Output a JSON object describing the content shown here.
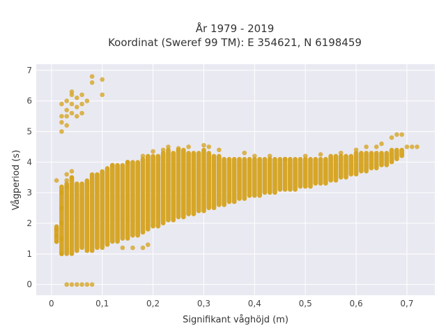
{
  "chart_data": {
    "type": "scatter",
    "title_line1": "År 1979 - 2019",
    "title_line2": "Koordinat (Sweref 99 TM): E 354621, N 6198459",
    "xlabel": "Signifikant våghöjd (m)",
    "ylabel": "Vågperiod (s)",
    "xlim": [
      -0.03,
      0.755
    ],
    "ylim": [
      -0.35,
      7.2
    ],
    "xticks": [
      0,
      0.1,
      0.2,
      0.3,
      0.4,
      0.5,
      0.6,
      0.7
    ],
    "xtick_labels": [
      "0",
      "0,1",
      "0,2",
      "0,3",
      "0,4",
      "0,5",
      "0,6",
      "0,7"
    ],
    "yticks": [
      0,
      1,
      2,
      3,
      4,
      5,
      6,
      7
    ],
    "ytick_labels": [
      "0",
      "1",
      "2",
      "3",
      "4",
      "5",
      "6",
      "7"
    ],
    "grid": true,
    "colors": {
      "marker": "#D4A017",
      "plot_background": "#E9E9F2",
      "grid": "#FFFFFF"
    },
    "series": [
      {
        "points": [
          [
            0.01,
            1.4
          ],
          [
            0.01,
            1.6
          ],
          [
            0.01,
            1.8
          ],
          [
            0.01,
            3.4
          ],
          [
            0.02,
            1.0
          ],
          [
            0.02,
            1.5
          ],
          [
            0.02,
            2.0
          ],
          [
            0.02,
            2.5
          ],
          [
            0.02,
            3.0
          ],
          [
            0.02,
            5.0
          ],
          [
            0.02,
            5.3
          ],
          [
            0.02,
            5.5
          ],
          [
            0.02,
            5.9
          ],
          [
            0.03,
            5.2
          ],
          [
            0.03,
            5.5
          ],
          [
            0.03,
            5.7
          ],
          [
            0.03,
            6.0
          ],
          [
            0.04,
            5.6
          ],
          [
            0.04,
            5.9
          ],
          [
            0.04,
            6.2
          ],
          [
            0.04,
            6.3
          ],
          [
            0.05,
            5.5
          ],
          [
            0.05,
            5.8
          ],
          [
            0.05,
            6.1
          ],
          [
            0.06,
            5.6
          ],
          [
            0.06,
            5.9
          ],
          [
            0.06,
            6.2
          ],
          [
            0.07,
            6.0
          ],
          [
            0.08,
            6.8
          ],
          [
            0.08,
            6.6
          ],
          [
            0.1,
            6.7
          ],
          [
            0.1,
            6.2
          ],
          [
            0.03,
            3.2
          ],
          [
            0.03,
            3.4
          ],
          [
            0.03,
            3.6
          ],
          [
            0.04,
            3.5
          ],
          [
            0.04,
            3.7
          ],
          [
            0.03,
            0
          ],
          [
            0.04,
            0
          ],
          [
            0.05,
            0
          ],
          [
            0.06,
            0
          ],
          [
            0.07,
            0
          ],
          [
            0.08,
            0
          ],
          [
            0.12,
            3.9
          ],
          [
            0.15,
            4.0
          ],
          [
            0.18,
            4.2
          ],
          [
            0.2,
            4.35
          ],
          [
            0.22,
            4.4
          ],
          [
            0.23,
            4.5
          ],
          [
            0.25,
            4.45
          ],
          [
            0.27,
            4.5
          ],
          [
            0.3,
            4.55
          ],
          [
            0.31,
            4.5
          ],
          [
            0.33,
            4.4
          ],
          [
            0.38,
            4.3
          ],
          [
            0.4,
            4.2
          ],
          [
            0.43,
            4.2
          ],
          [
            0.46,
            4.1
          ],
          [
            0.5,
            4.2
          ],
          [
            0.53,
            4.25
          ],
          [
            0.57,
            4.3
          ],
          [
            0.6,
            4.4
          ],
          [
            0.62,
            4.5
          ],
          [
            0.64,
            4.5
          ],
          [
            0.65,
            4.6
          ],
          [
            0.67,
            4.8
          ],
          [
            0.68,
            4.9
          ],
          [
            0.69,
            4.9
          ],
          [
            0.7,
            4.5
          ],
          [
            0.71,
            4.5
          ],
          [
            0.72,
            4.5
          ],
          [
            0.14,
            1.2
          ],
          [
            0.16,
            1.2
          ],
          [
            0.18,
            1.2
          ],
          [
            0.19,
            1.3
          ]
        ],
        "bands": [
          [
            0.01,
            1.4,
            1.9
          ],
          [
            0.02,
            1.0,
            3.2
          ],
          [
            0.03,
            1.0,
            3.3
          ],
          [
            0.04,
            1.0,
            3.5
          ],
          [
            0.05,
            1.1,
            3.3
          ],
          [
            0.06,
            1.2,
            3.3
          ],
          [
            0.07,
            1.1,
            3.4
          ],
          [
            0.08,
            1.1,
            3.6
          ],
          [
            0.09,
            1.2,
            3.6
          ],
          [
            0.1,
            1.2,
            3.7
          ],
          [
            0.11,
            1.3,
            3.8
          ],
          [
            0.12,
            1.4,
            3.9
          ],
          [
            0.13,
            1.4,
            3.9
          ],
          [
            0.14,
            1.5,
            3.9
          ],
          [
            0.15,
            1.5,
            4.0
          ],
          [
            0.16,
            1.6,
            4.0
          ],
          [
            0.17,
            1.6,
            4.0
          ],
          [
            0.18,
            1.7,
            4.1
          ],
          [
            0.19,
            1.8,
            4.2
          ],
          [
            0.2,
            1.9,
            4.2
          ],
          [
            0.21,
            1.9,
            4.2
          ],
          [
            0.22,
            2.0,
            4.3
          ],
          [
            0.23,
            2.1,
            4.4
          ],
          [
            0.24,
            2.1,
            4.3
          ],
          [
            0.25,
            2.2,
            4.4
          ],
          [
            0.26,
            2.2,
            4.4
          ],
          [
            0.27,
            2.3,
            4.3
          ],
          [
            0.28,
            2.3,
            4.3
          ],
          [
            0.29,
            2.4,
            4.3
          ],
          [
            0.3,
            2.4,
            4.4
          ],
          [
            0.31,
            2.5,
            4.3
          ],
          [
            0.32,
            2.5,
            4.2
          ],
          [
            0.33,
            2.6,
            4.2
          ],
          [
            0.34,
            2.6,
            4.1
          ],
          [
            0.35,
            2.7,
            4.1
          ],
          [
            0.36,
            2.7,
            4.1
          ],
          [
            0.37,
            2.8,
            4.1
          ],
          [
            0.38,
            2.8,
            4.1
          ],
          [
            0.39,
            2.9,
            4.1
          ],
          [
            0.4,
            2.9,
            4.1
          ],
          [
            0.41,
            2.9,
            4.1
          ],
          [
            0.42,
            3.0,
            4.1
          ],
          [
            0.43,
            3.0,
            4.1
          ],
          [
            0.44,
            3.0,
            4.1
          ],
          [
            0.45,
            3.1,
            4.1
          ],
          [
            0.46,
            3.1,
            4.1
          ],
          [
            0.47,
            3.1,
            4.1
          ],
          [
            0.48,
            3.1,
            4.1
          ],
          [
            0.49,
            3.2,
            4.1
          ],
          [
            0.5,
            3.2,
            4.1
          ],
          [
            0.51,
            3.2,
            4.1
          ],
          [
            0.52,
            3.3,
            4.1
          ],
          [
            0.53,
            3.3,
            4.1
          ],
          [
            0.54,
            3.3,
            4.1
          ],
          [
            0.55,
            3.4,
            4.2
          ],
          [
            0.56,
            3.4,
            4.2
          ],
          [
            0.57,
            3.5,
            4.2
          ],
          [
            0.58,
            3.5,
            4.2
          ],
          [
            0.59,
            3.6,
            4.2
          ],
          [
            0.6,
            3.6,
            4.3
          ],
          [
            0.61,
            3.7,
            4.3
          ],
          [
            0.62,
            3.7,
            4.3
          ],
          [
            0.63,
            3.8,
            4.3
          ],
          [
            0.64,
            3.8,
            4.3
          ],
          [
            0.65,
            3.9,
            4.3
          ],
          [
            0.66,
            3.9,
            4.3
          ],
          [
            0.67,
            4.0,
            4.4
          ],
          [
            0.68,
            4.1,
            4.4
          ],
          [
            0.69,
            4.2,
            4.4
          ]
        ]
      }
    ]
  }
}
